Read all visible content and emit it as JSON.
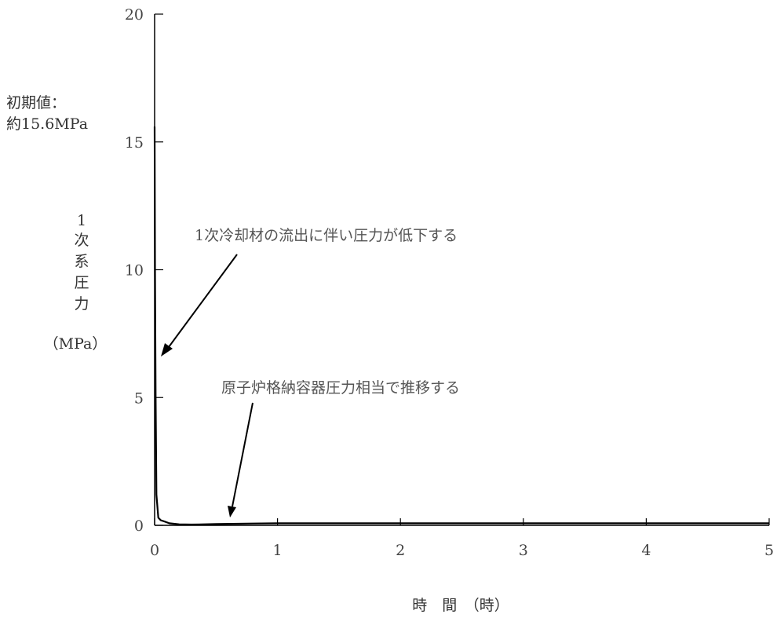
{
  "chart_data": {
    "type": "line",
    "ylabel_chars": [
      "1",
      "次",
      "系",
      "圧",
      "力"
    ],
    "yunit": "（MPa）",
    "xlabel": "時　間　（時）",
    "xlim": [
      0,
      5
    ],
    "ylim": [
      0,
      20
    ],
    "xticks": [
      "0",
      "1",
      "2",
      "3",
      "4",
      "5"
    ],
    "yticks": [
      "0",
      "5",
      "10",
      "15",
      "20"
    ],
    "initial_value_label": [
      "初期値：",
      "約15.6MPa"
    ],
    "annotations": [
      {
        "text": "1次冷却材の流出に伴い圧力が低下する"
      },
      {
        "text": "原子炉格納容器圧力相当で推移する"
      }
    ],
    "series": [
      {
        "x": [
          0,
          0.003,
          0.008,
          0.015,
          0.03,
          0.05,
          0.08,
          0.12,
          0.2,
          0.3,
          0.5,
          0.8,
          1.0,
          2.0,
          3.0,
          4.0,
          5.0
        ],
        "y": [
          15.6,
          10.0,
          5.0,
          1.2,
          0.3,
          0.2,
          0.15,
          0.08,
          0.04,
          0.03,
          0.05,
          0.07,
          0.08,
          0.08,
          0.08,
          0.08,
          0.08
        ]
      }
    ]
  }
}
